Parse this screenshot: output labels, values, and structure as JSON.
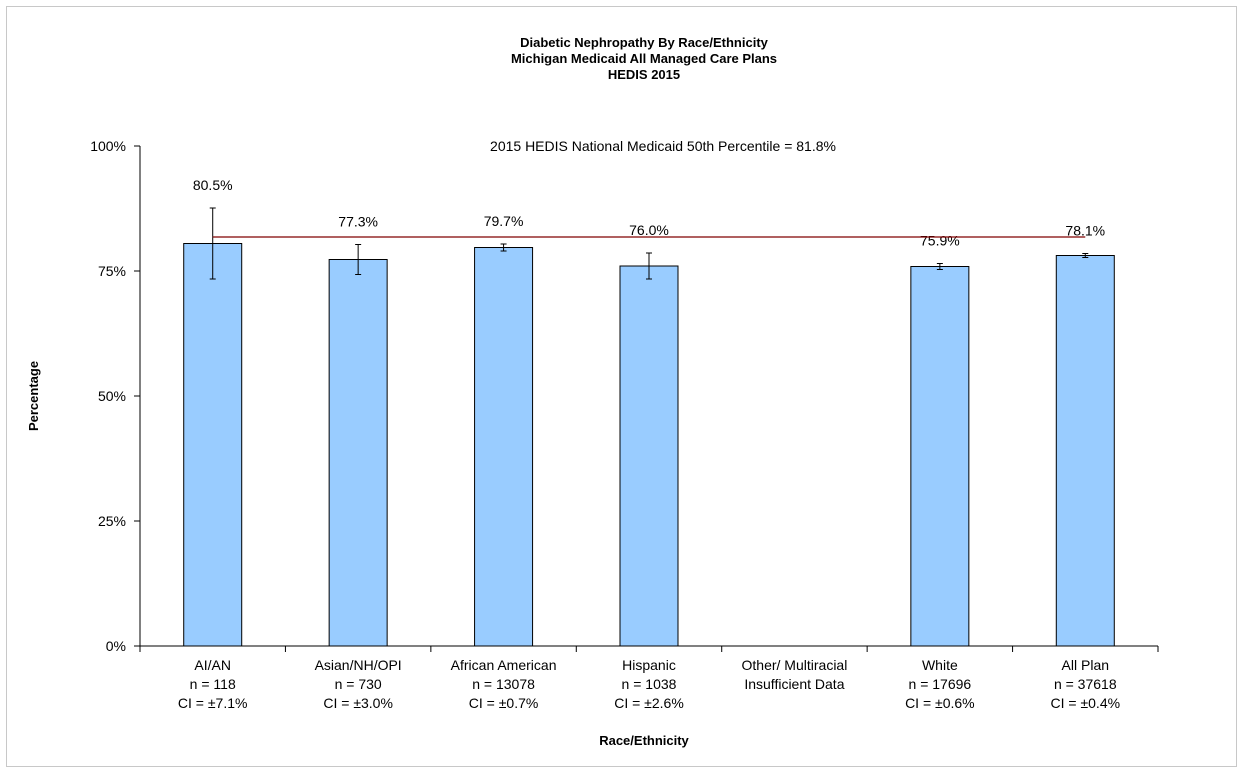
{
  "chart_data": {
    "type": "bar",
    "title": [
      "Diabetic Nephropathy By Race/Ethnicity",
      "Michigan Medicaid All Managed Care Plans",
      "HEDIS 2015"
    ],
    "xlabel": "Race/Ethnicity",
    "ylabel": "Percentage",
    "ylim": [
      0,
      100
    ],
    "yticks": [
      0,
      25,
      50,
      75,
      100
    ],
    "ytick_labels": [
      "0%",
      "25%",
      "50%",
      "75%",
      "100%"
    ],
    "grid": false,
    "legend": "none",
    "bar_color": "#99CCFF",
    "reference_line": {
      "value": 81.8,
      "label": "2015 HEDIS National Medicaid 50th Percentile = 81.8%",
      "color": "#800000"
    },
    "categories": [
      {
        "name": "AI/AN",
        "n": "n = 118",
        "ci": "CI = ±7.1%",
        "value": 80.5,
        "value_label": "80.5%",
        "ci_value": 7.1
      },
      {
        "name": "Asian/NH/OPI",
        "n": "n = 730",
        "ci": "CI = ±3.0%",
        "value": 77.3,
        "value_label": "77.3%",
        "ci_value": 3.0
      },
      {
        "name": "African American",
        "n": "n = 13078",
        "ci": "CI = ±0.7%",
        "value": 79.7,
        "value_label": "79.7%",
        "ci_value": 0.7
      },
      {
        "name": "Hispanic",
        "n": "n = 1038",
        "ci": "CI = ±2.6%",
        "value": 76.0,
        "value_label": "76.0%",
        "ci_value": 2.6
      },
      {
        "name": "Other/ Multiracial",
        "n": "Insufficient Data",
        "ci": "",
        "value": null,
        "value_label": "",
        "ci_value": null
      },
      {
        "name": "White",
        "n": "n = 17696",
        "ci": "CI = ±0.6%",
        "value": 75.9,
        "value_label": "75.9%",
        "ci_value": 0.6
      },
      {
        "name": "All Plan",
        "n": "n = 37618",
        "ci": "CI = ±0.4%",
        "value": 78.1,
        "value_label": "78.1%",
        "ci_value": 0.4
      }
    ]
  }
}
